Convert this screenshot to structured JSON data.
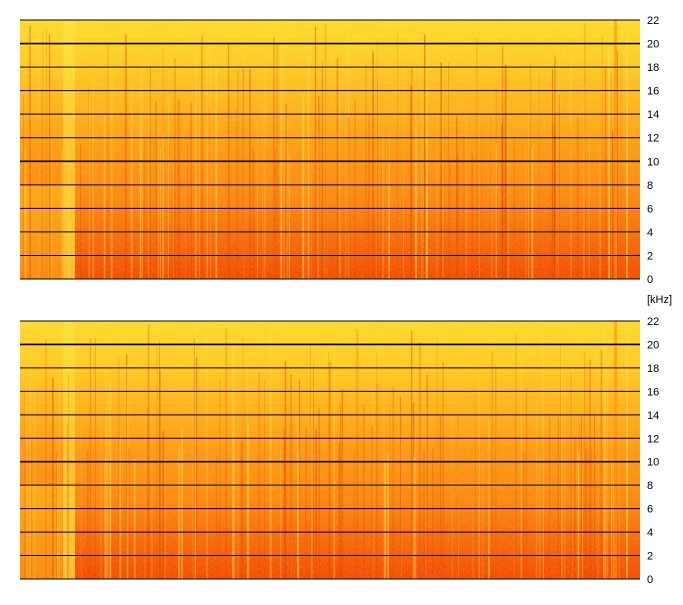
{
  "chart_data": {
    "type": "heatmap",
    "title": "",
    "unit_label": "[kHz]",
    "xlabel": "",
    "ylabel": "",
    "channels": [
      {
        "y_ticks": [
          22,
          20,
          18,
          16,
          14,
          12,
          10,
          8,
          6,
          4,
          2,
          0
        ],
        "ylim": [
          0,
          22
        ],
        "emphasized_gridlines": [
          20,
          10
        ],
        "grid": true
      },
      {
        "y_ticks": [
          22,
          20,
          18,
          16,
          14,
          12,
          10,
          8,
          6,
          4,
          2,
          0
        ],
        "ylim": [
          0,
          22
        ],
        "emphasized_gridlines": [
          20,
          10
        ],
        "grid": true
      }
    ],
    "colormap": {
      "low_energy": "#ffe035",
      "mid_energy": "#ff9a1a",
      "high_energy": "#f24a0a"
    }
  }
}
